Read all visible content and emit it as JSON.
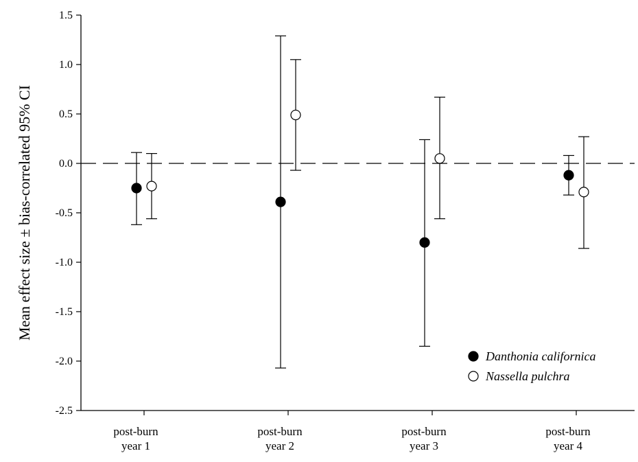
{
  "chart_data": {
    "type": "scatter",
    "ylabel": "Mean effect size ± bias-correlated 95% CI",
    "ylim": [
      -2.5,
      1.5
    ],
    "yticks": [
      "1.5",
      "1.0",
      "0.5",
      "0.0",
      "-0.5",
      "-1.0",
      "-1.5",
      "-2.0",
      "-2.5"
    ],
    "categories": [
      [
        "post-burn",
        "year 1"
      ],
      [
        "post-burn",
        "year 2"
      ],
      [
        "post-burn",
        "year 3"
      ],
      [
        "post-burn",
        "year 4"
      ]
    ],
    "reference_line": {
      "y": 0,
      "style": "dashed"
    },
    "legend_position": "bottom-right",
    "series": [
      {
        "name": "Danthonia californica",
        "marker": "filled-circle",
        "color": "#000000",
        "values": [
          -0.25,
          -0.39,
          -0.8,
          -0.12
        ],
        "ci_low": [
          -0.62,
          -2.07,
          -1.85,
          -0.32
        ],
        "ci_high": [
          0.11,
          1.29,
          0.24,
          0.08
        ]
      },
      {
        "name": "Nassella pulchra",
        "marker": "open-circle",
        "color": "#000000",
        "values": [
          -0.23,
          0.49,
          0.05,
          -0.29
        ],
        "ci_low": [
          -0.56,
          -0.07,
          -0.56,
          -0.86
        ],
        "ci_high": [
          0.1,
          1.05,
          0.67,
          0.27
        ]
      }
    ]
  }
}
